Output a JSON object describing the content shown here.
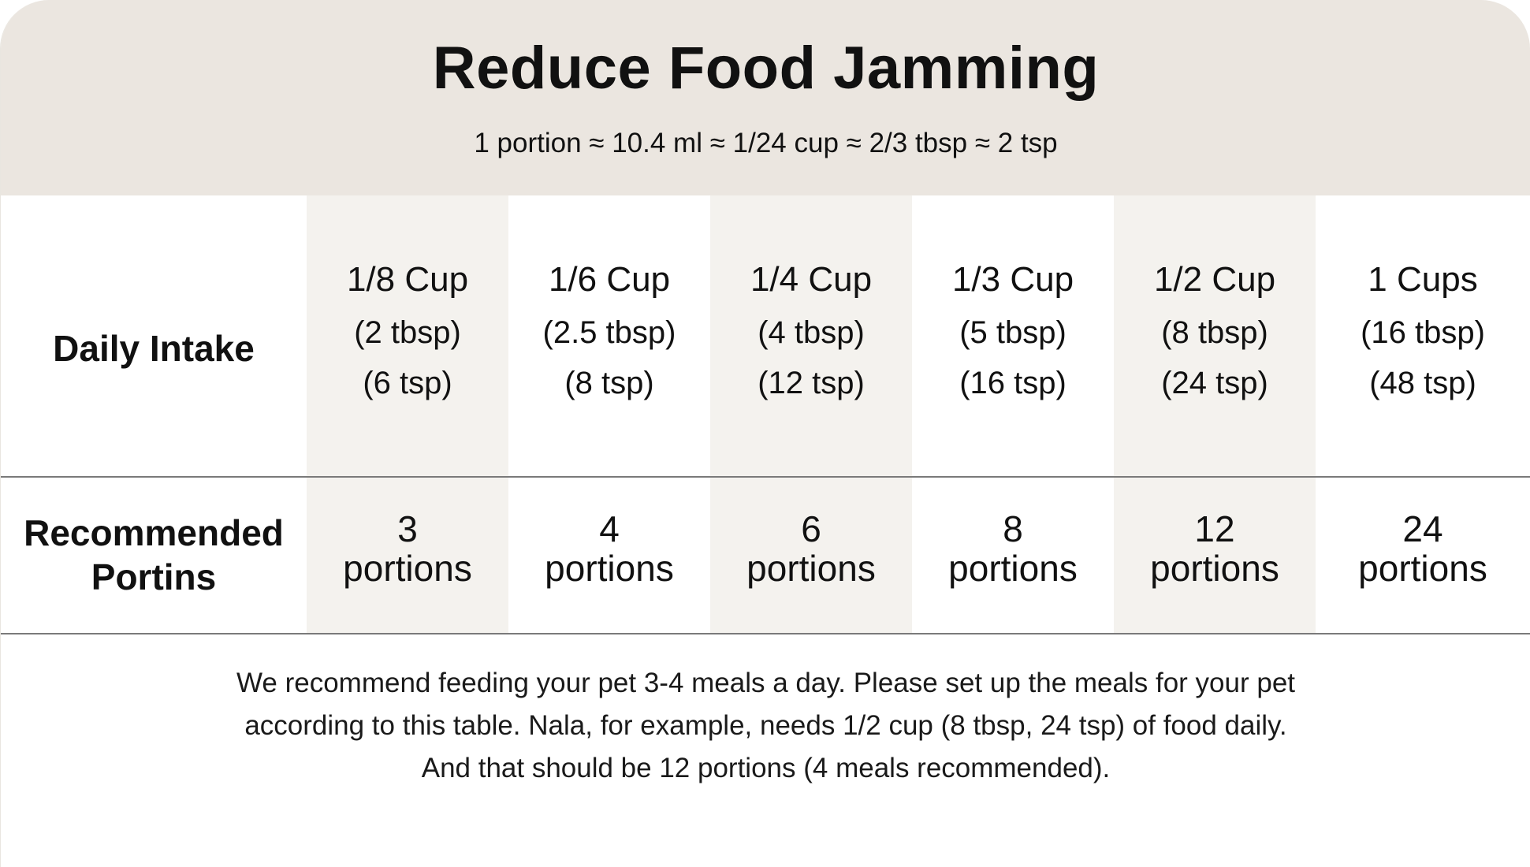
{
  "header": {
    "title": "Reduce Food Jamming",
    "subtitle": "1 portion ≈ 10.4 ml ≈ 1/24 cup ≈ 2/3 tbsp ≈ 2 tsp"
  },
  "table": {
    "row_labels": {
      "daily_intake": "Daily Intake",
      "recommended_line1": "Recommended",
      "recommended_line2": "Portins"
    },
    "columns": [
      {
        "cup": "1/8 Cup",
        "tbsp": "(2 tbsp)",
        "tsp": "(6 tsp)",
        "portions_num": "3",
        "portions_word": "portions"
      },
      {
        "cup": "1/6 Cup",
        "tbsp": "(2.5 tbsp)",
        "tsp": "(8 tsp)",
        "portions_num": "4",
        "portions_word": "portions"
      },
      {
        "cup": "1/4 Cup",
        "tbsp": "(4 tbsp)",
        "tsp": "(12 tsp)",
        "portions_num": "6",
        "portions_word": "portions"
      },
      {
        "cup": "1/3 Cup",
        "tbsp": "(5 tbsp)",
        "tsp": "(16 tsp)",
        "portions_num": "8",
        "portions_word": "portions"
      },
      {
        "cup": "1/2 Cup",
        "tbsp": "(8 tbsp)",
        "tsp": "(24 tsp)",
        "portions_num": "12",
        "portions_word": "portions"
      },
      {
        "cup": "1 Cups",
        "tbsp": "(16 tbsp)",
        "tsp": "(48 tsp)",
        "portions_num": "24",
        "portions_word": "portions"
      }
    ]
  },
  "note": {
    "line1": "We recommend feeding your pet 3-4 meals a day. Please set up the meals for your pet",
    "line2": "according to this table. Nala, for example, needs 1/2 cup (8 tbsp, 24 tsp) of food daily.",
    "line3": "And that should be 12 portions (4 meals recommended)."
  },
  "colors": {
    "header_background": "#ebe6e0",
    "alternate_column": "#f4f2ee",
    "divider": "#7a7a7a"
  }
}
